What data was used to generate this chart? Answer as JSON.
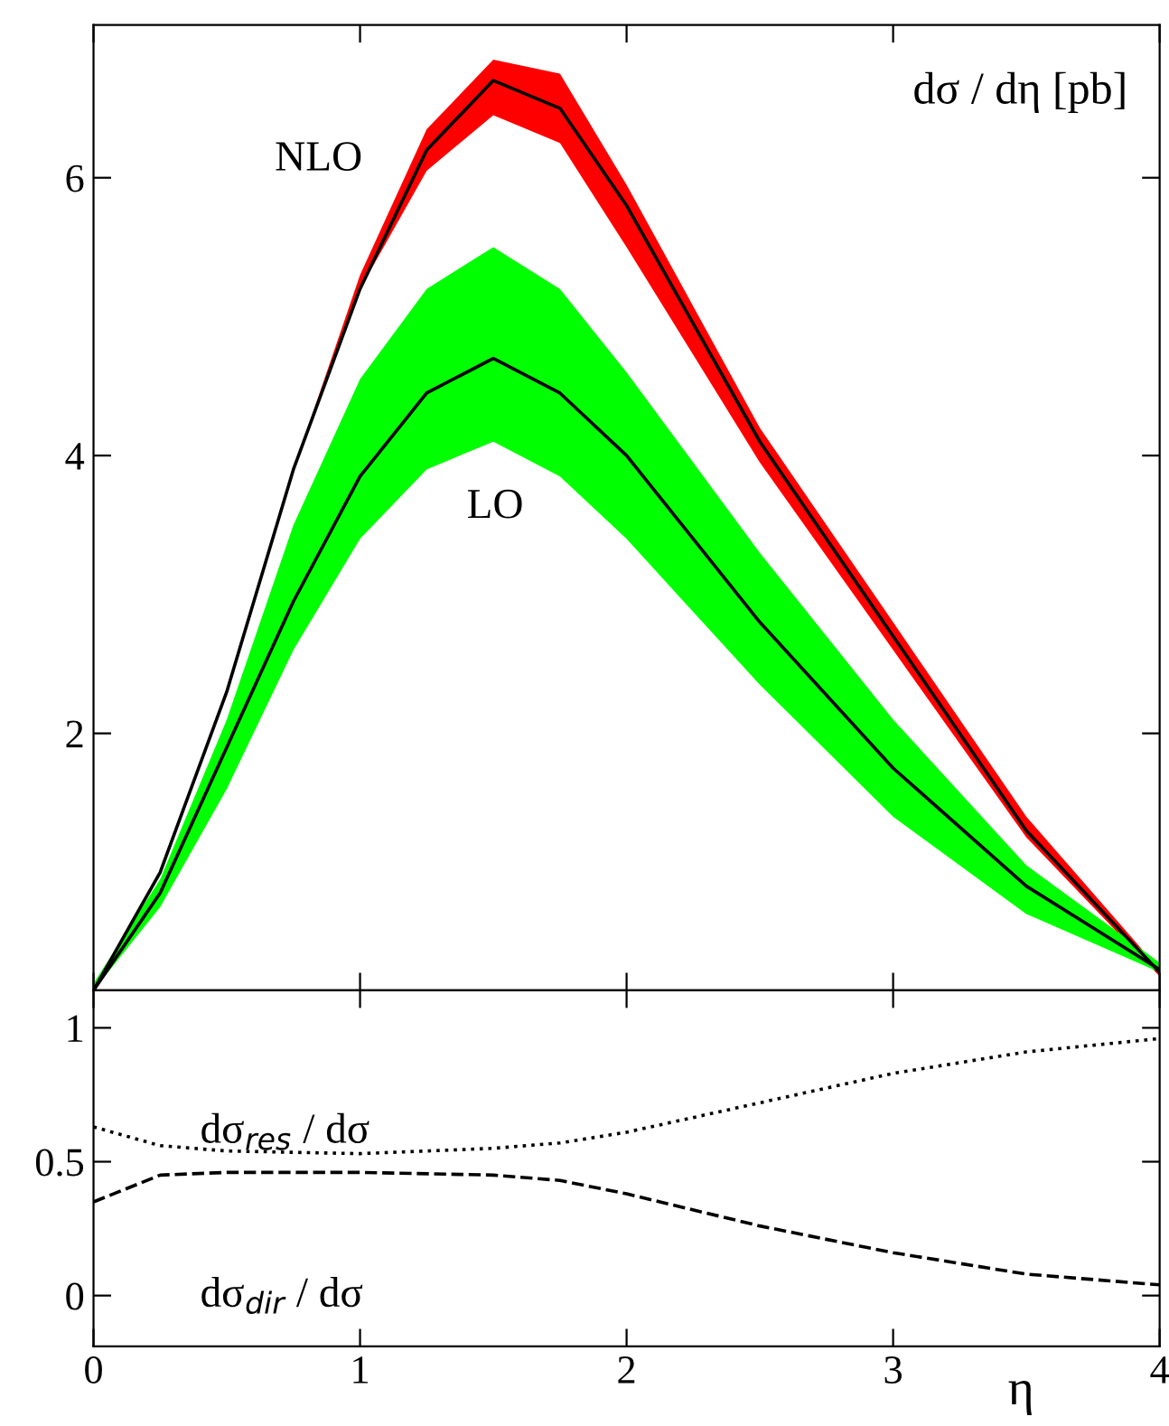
{
  "chart_data": [
    {
      "type": "line",
      "title": "dσ / dη [pb]",
      "xlim": [
        0,
        4
      ],
      "ylim": [
        0.15,
        7.1
      ],
      "yticks": [
        2,
        4,
        6
      ],
      "tick_labels": "y",
      "grid": false,
      "marker": "none",
      "line_style": "solid",
      "x": [
        0,
        0.25,
        0.5,
        0.75,
        1.0,
        1.25,
        1.5,
        1.75,
        2.0,
        2.5,
        3.0,
        3.5,
        4.0
      ],
      "series": [
        {
          "name": "NLO",
          "color": "#000000",
          "values": [
            0.15,
            1.0,
            2.3,
            3.9,
            5.2,
            6.2,
            6.7,
            6.5,
            5.8,
            4.1,
            2.7,
            1.3,
            0.28
          ],
          "lower": [
            0.15,
            1.0,
            2.3,
            3.9,
            5.2,
            6.05,
            6.45,
            6.25,
            5.5,
            3.95,
            2.6,
            1.25,
            0.25
          ],
          "upper": [
            0.15,
            1.0,
            2.3,
            3.9,
            5.3,
            6.35,
            6.85,
            6.75,
            5.95,
            4.2,
            2.8,
            1.4,
            0.3
          ]
        },
        {
          "name": "LO",
          "color": "#000000",
          "values": [
            0.15,
            0.85,
            1.9,
            2.95,
            3.85,
            4.45,
            4.7,
            4.45,
            4.0,
            2.8,
            1.75,
            0.9,
            0.3
          ],
          "lower": [
            0.15,
            0.75,
            1.6,
            2.6,
            3.4,
            3.9,
            4.1,
            3.85,
            3.4,
            2.35,
            1.4,
            0.7,
            0.28
          ],
          "upper": [
            0.2,
            0.95,
            2.1,
            3.5,
            4.55,
            5.2,
            5.5,
            5.2,
            4.6,
            3.3,
            2.1,
            1.05,
            0.35
          ]
        }
      ]
    },
    {
      "type": "line",
      "xlabel": "η",
      "xlim": [
        0,
        4
      ],
      "ylim": [
        -0.19,
        1.14
      ],
      "xticks": [
        0,
        1,
        2,
        3,
        4
      ],
      "yticks": [
        0,
        0.5,
        1
      ],
      "grid": false,
      "marker": "none",
      "x": [
        0,
        0.25,
        0.5,
        1.0,
        1.5,
        1.75,
        2.0,
        2.5,
        3.0,
        3.5,
        4.0
      ],
      "series": [
        {
          "name": "dσ$_{res}$ / dσ",
          "color": "#000000",
          "line_style": "dotted",
          "values": [
            0.63,
            0.56,
            0.54,
            0.53,
            0.55,
            0.57,
            0.61,
            0.72,
            0.83,
            0.91,
            0.96
          ]
        },
        {
          "name": "dσ$_{dir}$ / dσ",
          "color": "#000000",
          "line_style": "dashed",
          "values": [
            0.35,
            0.45,
            0.46,
            0.46,
            0.45,
            0.43,
            0.38,
            0.26,
            0.16,
            0.08,
            0.04
          ]
        }
      ]
    }
  ]
}
